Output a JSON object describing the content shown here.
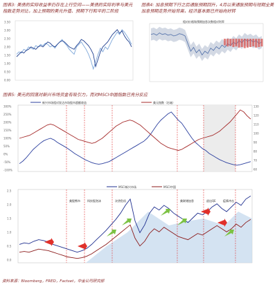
{
  "captions": {
    "c3": "图表3: 美债的实际收益率仍存在上行空间——美债的实际利率与美元指数走势对比，加上预期的美元升值、预期下行和平的二阶段",
    "c4": "图表4: 加息预期下行之后通胀预期回升，4月以来通胀预期与短期全美加息预期走势开始背离，经济基本面已开始向好转",
    "c5": "图表5: 美元的回落对新兴市场资金有吸引力，而对MSCI中国指数已充分反应"
  },
  "source": "资料来源：Bloomberg，FRED，Factset，中金公司研究部",
  "chart_data": [
    {
      "type": "line",
      "id": "c3",
      "series": [
        {
          "name": "",
          "color": "#7da7d9",
          "values": [
            40,
            42,
            41,
            44,
            43,
            46,
            45,
            44,
            47,
            46,
            48,
            47,
            49,
            48,
            46,
            47,
            45,
            48,
            50,
            52,
            49,
            47,
            44,
            42,
            40,
            46,
            48,
            50,
            47,
            44,
            40,
            35,
            28,
            34,
            40,
            45,
            42,
            46,
            44,
            48,
            52,
            55,
            58,
            56,
            60,
            58,
            55,
            52,
            48
          ]
        },
        {
          "name": "",
          "color": "#1f3f8f",
          "values": [
            38,
            40,
            42,
            41,
            43,
            44,
            46,
            45,
            44,
            46,
            47,
            46,
            48,
            50,
            49,
            47,
            46,
            48,
            50,
            51,
            50,
            48,
            46,
            45,
            44,
            47,
            49,
            52,
            51,
            49,
            47,
            44,
            40,
            30,
            36,
            42,
            46,
            48,
            50,
            53,
            56,
            58,
            60,
            57,
            59,
            55,
            52,
            50,
            46
          ]
        }
      ],
      "yticks": [
        "3.50",
        "3.00",
        "2.50",
        "2.00",
        "1.50",
        "1.00",
        "0.50",
        "0.00"
      ]
    },
    {
      "type": "area",
      "id": "c4",
      "legend": [
        "相对价格和预期加息次数相对利率"
      ],
      "series": [
        {
          "name": "",
          "color": "#4f6ea8",
          "values": [
            62,
            63,
            61,
            64,
            62,
            63,
            61,
            62,
            60,
            61,
            63,
            62,
            60,
            50,
            40,
            45,
            38,
            42,
            35,
            40,
            37,
            44,
            41,
            46,
            43,
            48,
            45,
            50,
            47,
            52,
            49,
            54,
            51,
            56,
            53,
            55,
            52,
            54,
            50,
            52
          ]
        },
        {
          "name": "",
          "color": "#d9534f",
          "values": [
            0,
            0,
            0,
            0,
            0,
            0,
            0,
            0,
            0,
            0,
            0,
            0,
            0,
            0,
            0,
            0,
            0,
            0,
            0,
            0,
            0,
            0,
            0,
            0,
            0,
            0,
            12,
            14,
            13,
            15,
            14,
            16,
            15,
            17,
            16,
            15,
            14,
            16,
            15,
            14
          ]
        }
      ]
    },
    {
      "type": "line",
      "id": "c5a",
      "legend": [
        "新兴市场相对发达市场股市超额收益",
        "美元指数（右轴）"
      ],
      "yticks": [
        "300%",
        "250%",
        "200%",
        "150%",
        "100%",
        "50%",
        "0%",
        "-50%",
        "-100%"
      ],
      "y2ticks": [
        "130",
        "120",
        "110",
        "100",
        "90",
        "80",
        "70",
        "60"
      ],
      "series": [
        {
          "name": "新兴市场相对发达市场股市超额收益",
          "color": "#2b3f9e",
          "values": [
            10,
            15,
            22,
            30,
            38,
            44,
            50,
            55,
            58,
            60,
            57,
            52,
            48,
            44,
            40,
            35,
            30,
            26,
            22,
            18,
            15,
            12,
            10,
            9,
            10,
            12,
            14,
            18,
            22,
            26,
            30,
            34,
            38,
            42,
            46,
            50,
            54,
            60,
            68,
            78,
            88,
            96,
            102,
            108,
            112,
            104,
            96,
            90,
            80,
            70,
            60,
            52,
            46,
            40,
            36,
            30,
            26,
            22,
            18,
            15,
            12,
            10,
            8,
            7,
            8,
            10,
            12,
            14
          ]
        },
        {
          "name": "美元指数（右轴）",
          "color": "#a52a2a",
          "values": [
            60,
            62,
            64,
            66,
            70,
            74,
            78,
            82,
            86,
            88,
            86,
            82,
            78,
            74,
            70,
            66,
            62,
            58,
            56,
            54,
            52,
            50,
            52,
            56,
            60,
            66,
            72,
            78,
            84,
            88,
            92,
            94,
            96,
            94,
            90,
            86,
            80,
            74,
            68,
            62,
            56,
            50,
            46,
            42,
            40,
            38,
            36,
            38,
            42,
            46,
            50,
            54,
            58,
            60,
            62,
            64,
            66,
            70,
            74,
            80,
            86,
            92,
            100,
            108,
            116,
            112,
            104,
            98
          ]
        }
      ]
    },
    {
      "type": "line",
      "id": "c5b",
      "legend": [
        "MSCI新兴市场",
        "MSCI中国"
      ],
      "annotations": [
        "美股熊市",
        "科技股泡沫",
        "次贷危机",
        "美联储加息",
        "退出QE",
        "疫情冲击"
      ],
      "yticks": [
        "2.5",
        "2.0",
        "1.5",
        "1.0",
        "0.5",
        "0.0"
      ],
      "series": [
        {
          "name": "MSCI新兴市场",
          "color": "#1f2f8f",
          "values": [
            30,
            32,
            31,
            34,
            36,
            35,
            33,
            30,
            28,
            26,
            24,
            22,
            20,
            22,
            25,
            30,
            36,
            42,
            48,
            55,
            62,
            70,
            80,
            88,
            60,
            45,
            55,
            70,
            78,
            74,
            80,
            76,
            70,
            66,
            62,
            58,
            64,
            70,
            68,
            72,
            78,
            82,
            76,
            72,
            78,
            84,
            80,
            88,
            92
          ]
        },
        {
          "name": "MSCI中国",
          "color": "#8b1a1a",
          "values": [
            20,
            21,
            20,
            22,
            24,
            23,
            22,
            20,
            18,
            16,
            14,
            13,
            12,
            13,
            15,
            18,
            22,
            26,
            30,
            35,
            40,
            45,
            50,
            55,
            38,
            28,
            34,
            44,
            50,
            46,
            52,
            48,
            44,
            40,
            38,
            36,
            40,
            44,
            42,
            46,
            50,
            54,
            50,
            46,
            50,
            56,
            52,
            58,
            62
          ]
        }
      ]
    }
  ]
}
